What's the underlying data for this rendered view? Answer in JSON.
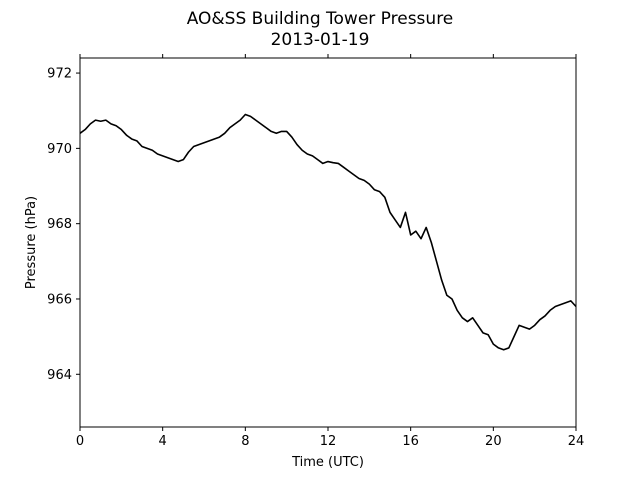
{
  "chart_data": {
    "type": "line",
    "title": "AO&SS Building Tower Pressure",
    "subtitle": "2013-01-19",
    "xlabel": "Time (UTC)",
    "ylabel": "Pressure (hPa)",
    "xlim": [
      0,
      24
    ],
    "ylim": [
      962.6,
      972.4
    ],
    "xticks": [
      0,
      4,
      8,
      12,
      16,
      20,
      24
    ],
    "yticks": [
      964,
      966,
      968,
      970,
      972
    ],
    "grid": false,
    "legend": "none",
    "line_color": "#000000",
    "series": [
      {
        "x": [
          0.0,
          0.25,
          0.5,
          0.75,
          1.0,
          1.25,
          1.5,
          1.75,
          2.0,
          2.25,
          2.5,
          2.75,
          3.0,
          3.25,
          3.5,
          3.75,
          4.0,
          4.25,
          4.5,
          4.75,
          5.0,
          5.25,
          5.5,
          5.75,
          6.0,
          6.25,
          6.5,
          6.75,
          7.0,
          7.25,
          7.5,
          7.75,
          8.0,
          8.25,
          8.5,
          8.75,
          9.0,
          9.25,
          9.5,
          9.75,
          10.0,
          10.25,
          10.5,
          10.75,
          11.0,
          11.25,
          11.5,
          11.75,
          12.0,
          12.25,
          12.5,
          12.75,
          13.0,
          13.25,
          13.5,
          13.75,
          14.0,
          14.25,
          14.5,
          14.75,
          15.0,
          15.25,
          15.5,
          15.75,
          16.0,
          16.25,
          16.5,
          16.75,
          17.0,
          17.25,
          17.5,
          17.75,
          18.0,
          18.25,
          18.5,
          18.75,
          19.0,
          19.25,
          19.5,
          19.75,
          20.0,
          20.25,
          20.5,
          20.75,
          21.0,
          21.25,
          21.5,
          21.75,
          22.0,
          22.25,
          22.5,
          22.75,
          23.0,
          23.25,
          23.5,
          23.75,
          24.0
        ],
        "y": [
          970.4,
          970.5,
          970.65,
          970.75,
          970.72,
          970.75,
          970.65,
          970.6,
          970.5,
          970.35,
          970.25,
          970.2,
          970.05,
          970.0,
          969.95,
          969.85,
          969.8,
          969.75,
          969.7,
          969.65,
          969.7,
          969.9,
          970.05,
          970.1,
          970.15,
          970.2,
          970.25,
          970.3,
          970.4,
          970.55,
          970.65,
          970.75,
          970.9,
          970.85,
          970.75,
          970.65,
          970.55,
          970.45,
          970.4,
          970.45,
          970.45,
          970.3,
          970.1,
          969.95,
          969.85,
          969.8,
          969.7,
          969.6,
          969.65,
          969.62,
          969.6,
          969.5,
          969.4,
          969.3,
          969.2,
          969.15,
          969.05,
          968.9,
          968.85,
          968.7,
          968.3,
          968.1,
          967.9,
          968.3,
          967.7,
          967.8,
          967.6,
          967.9,
          967.5,
          967.0,
          966.5,
          966.1,
          966.0,
          965.7,
          965.5,
          965.4,
          965.5,
          965.3,
          965.1,
          965.05,
          964.8,
          964.7,
          964.65,
          964.7,
          965.0,
          965.3,
          965.25,
          965.2,
          965.3,
          965.45,
          965.55,
          965.7,
          965.8,
          965.85,
          965.9,
          965.95,
          965.8
        ]
      }
    ]
  }
}
